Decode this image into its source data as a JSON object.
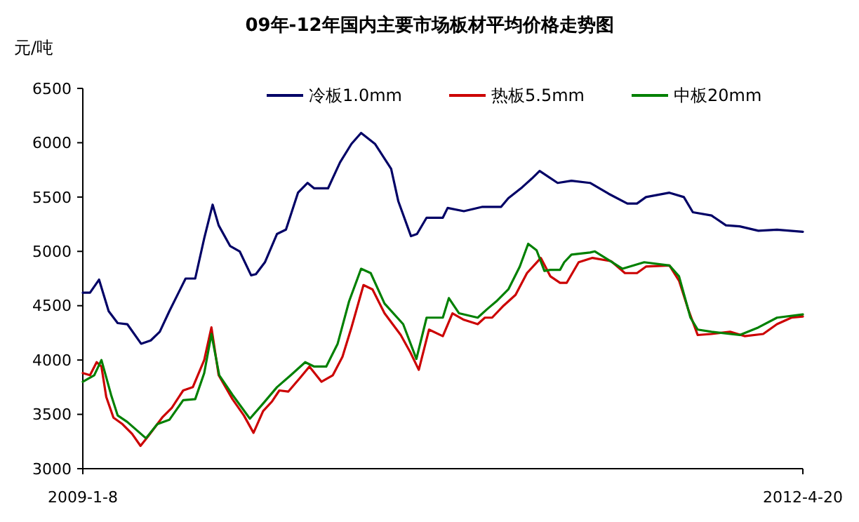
{
  "chart_data": {
    "type": "line",
    "title": "09年-12年国内主要市场板材平均价格走势图",
    "ylabel": "元/吨",
    "legend": "top",
    "grid": false,
    "marker": "none",
    "line_style": "solid",
    "xlim": [
      "2009-01-08",
      "2012-04-20"
    ],
    "xticks": [
      {
        "value": "2009-01-08",
        "label": "2009-1-8"
      },
      {
        "value": "2012-04-20",
        "label": "2012-4-20"
      }
    ],
    "ylim": [
      3000,
      6500
    ],
    "yticks": [
      3000,
      3500,
      4000,
      4500,
      5000,
      5500,
      6000,
      6500
    ],
    "series": [
      {
        "name": "冷板1.0mm",
        "color": "#000066",
        "x": [
          "2009-01-08",
          "2009-01-20",
          "2009-02-04",
          "2009-02-20",
          "2009-03-07",
          "2009-03-23",
          "2009-04-15",
          "2009-05-01",
          "2009-05-16",
          "2009-06-01",
          "2009-06-28",
          "2009-07-14",
          "2009-07-29",
          "2009-08-12",
          "2009-08-22",
          "2009-09-10",
          "2009-09-26",
          "2009-10-15",
          "2009-10-23",
          "2009-11-07",
          "2009-11-27",
          "2009-12-12",
          "2010-01-01",
          "2010-01-17",
          "2010-01-28",
          "2010-02-20",
          "2010-03-12",
          "2010-03-31",
          "2010-04-16",
          "2010-05-09",
          "2010-06-05",
          "2010-06-17",
          "2010-07-08",
          "2010-07-18",
          "2010-08-03",
          "2010-08-30",
          "2010-09-07",
          "2010-10-04",
          "2010-11-04",
          "2010-12-05",
          "2010-12-17",
          "2011-01-09",
          "2011-01-25",
          "2011-02-07",
          "2011-03-09",
          "2011-04-01",
          "2011-05-02",
          "2011-06-02",
          "2011-07-03",
          "2011-07-19",
          "2011-08-03",
          "2011-09-11",
          "2011-10-05",
          "2011-10-20",
          "2011-11-20",
          "2011-12-14",
          "2012-01-06",
          "2012-02-06",
          "2012-03-08",
          "2012-04-20"
        ],
        "values": [
          4620,
          4620,
          4740,
          4450,
          4340,
          4330,
          4150,
          4180,
          4260,
          4450,
          4750,
          4750,
          5120,
          5430,
          5240,
          5050,
          5000,
          4780,
          4790,
          4900,
          5160,
          5200,
          5540,
          5630,
          5580,
          5580,
          5820,
          5990,
          6090,
          5990,
          5760,
          5460,
          5140,
          5160,
          5310,
          5310,
          5400,
          5370,
          5410,
          5410,
          5490,
          5590,
          5670,
          5740,
          5630,
          5650,
          5630,
          5530,
          5440,
          5440,
          5500,
          5540,
          5500,
          5360,
          5330,
          5240,
          5230,
          5190,
          5200,
          5180
        ]
      },
      {
        "name": "热板5.5mm",
        "color": "#cc0000",
        "x": [
          "2009-01-08",
          "2009-01-20",
          "2009-01-31",
          "2009-02-08",
          "2009-02-16",
          "2009-02-28",
          "2009-03-15",
          "2009-03-31",
          "2009-04-14",
          "2009-04-27",
          "2009-05-20",
          "2009-06-05",
          "2009-06-24",
          "2009-07-10",
          "2009-07-29",
          "2009-08-10",
          "2009-08-22",
          "2009-09-14",
          "2009-10-03",
          "2009-10-19",
          "2009-11-04",
          "2009-11-19",
          "2009-12-01",
          "2009-12-16",
          "2010-01-05",
          "2010-01-20",
          "2010-02-09",
          "2010-02-28",
          "2010-03-16",
          "2010-03-31",
          "2010-04-20",
          "2010-05-05",
          "2010-05-25",
          "2010-06-21",
          "2010-07-07",
          "2010-07-21",
          "2010-08-07",
          "2010-08-30",
          "2010-09-15",
          "2010-10-04",
          "2010-10-27",
          "2010-11-08",
          "2010-11-20",
          "2010-12-09",
          "2010-12-29",
          "2011-01-17",
          "2011-02-09",
          "2011-02-25",
          "2011-03-13",
          "2011-03-24",
          "2011-04-13",
          "2011-05-06",
          "2011-06-06",
          "2011-06-29",
          "2011-07-19",
          "2011-08-03",
          "2011-09-11",
          "2011-09-27",
          "2011-10-12",
          "2011-10-28",
          "2011-11-20",
          "2011-12-21",
          "2012-01-14",
          "2012-02-14",
          "2012-03-08",
          "2012-04-01",
          "2012-04-20"
        ],
        "values": [
          3880,
          3860,
          3980,
          3940,
          3660,
          3470,
          3410,
          3320,
          3210,
          3300,
          3470,
          3560,
          3720,
          3750,
          4000,
          4300,
          3860,
          3640,
          3490,
          3330,
          3530,
          3620,
          3720,
          3710,
          3840,
          3940,
          3800,
          3860,
          4030,
          4300,
          4690,
          4650,
          4430,
          4230,
          4070,
          3910,
          4280,
          4220,
          4430,
          4370,
          4330,
          4390,
          4390,
          4500,
          4600,
          4800,
          4940,
          4770,
          4710,
          4710,
          4900,
          4940,
          4910,
          4800,
          4800,
          4860,
          4870,
          4730,
          4470,
          4230,
          4240,
          4260,
          4220,
          4240,
          4330,
          4390,
          4400
        ]
      },
      {
        "name": "中板20mm",
        "color": "#008000",
        "x": [
          "2009-01-08",
          "2009-01-27",
          "2009-02-08",
          "2009-02-24",
          "2009-03-07",
          "2009-03-23",
          "2009-04-23",
          "2009-05-12",
          "2009-06-01",
          "2009-06-24",
          "2009-07-14",
          "2009-07-29",
          "2009-08-10",
          "2009-08-23",
          "2009-09-14",
          "2009-10-13",
          "2009-11-04",
          "2009-11-27",
          "2009-12-20",
          "2010-01-13",
          "2010-01-28",
          "2010-02-17",
          "2010-03-08",
          "2010-03-27",
          "2010-04-16",
          "2010-05-02",
          "2010-05-25",
          "2010-06-25",
          "2010-07-17",
          "2010-08-03",
          "2010-08-30",
          "2010-09-09",
          "2010-09-26",
          "2010-10-27",
          "2010-11-12",
          "2010-11-27",
          "2010-12-17",
          "2011-01-05",
          "2011-01-19",
          "2011-02-02",
          "2011-02-15",
          "2011-02-25",
          "2011-03-13",
          "2011-03-20",
          "2011-04-01",
          "2011-05-02",
          "2011-05-10",
          "2011-06-02",
          "2011-06-25",
          "2011-07-31",
          "2011-09-11",
          "2011-09-27",
          "2011-10-16",
          "2011-10-28",
          "2011-11-20",
          "2012-01-06",
          "2012-02-06",
          "2012-03-08",
          "2012-04-20"
        ],
        "values": [
          3800,
          3860,
          4000,
          3680,
          3490,
          3430,
          3280,
          3410,
          3450,
          3630,
          3640,
          3880,
          4240,
          3860,
          3680,
          3460,
          3600,
          3750,
          3860,
          3980,
          3940,
          3940,
          4150,
          4540,
          4840,
          4800,
          4520,
          4330,
          4010,
          4390,
          4390,
          4570,
          4430,
          4390,
          4470,
          4540,
          4650,
          4860,
          5070,
          5010,
          4820,
          4830,
          4830,
          4900,
          4970,
          4990,
          5000,
          4920,
          4840,
          4900,
          4870,
          4770,
          4390,
          4280,
          4260,
          4230,
          4300,
          4390,
          4420
        ]
      }
    ]
  }
}
